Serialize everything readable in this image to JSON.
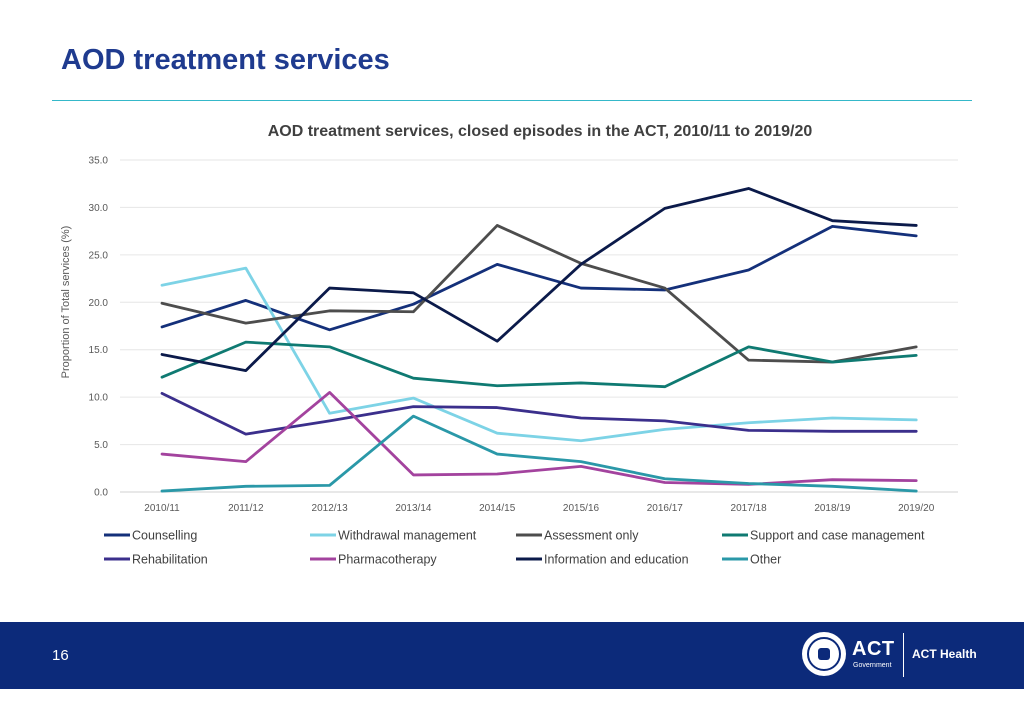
{
  "slide": {
    "title": "AOD treatment services",
    "page_number": "16"
  },
  "footer": {
    "logo_act": "ACT",
    "logo_government": "Government",
    "logo_health": "ACT Health"
  },
  "colors": {
    "title": "#1f3b8f",
    "rule": "#35b8c9",
    "footer": "#0c2a7a"
  },
  "chart_data": {
    "type": "line",
    "title": "AOD treatment services, closed episodes in the ACT, 2010/11 to 2019/20",
    "xlabel": "",
    "ylabel": "Proportion of Total services (%)",
    "ylim": [
      0,
      35
    ],
    "yticks": [
      "0.0",
      "5.0",
      "10.0",
      "15.0",
      "20.0",
      "25.0",
      "30.0",
      "35.0"
    ],
    "grid": true,
    "legend_position": "bottom",
    "categories": [
      "2010/11",
      "2011/12",
      "2012/13",
      "2013/14",
      "2014/15",
      "2015/16",
      "2016/17",
      "2017/18",
      "2018/19",
      "2019/20"
    ],
    "series": [
      {
        "name": "Counselling",
        "color": "#14307a",
        "values": [
          17.4,
          20.2,
          17.1,
          19.8,
          24.0,
          21.5,
          21.3,
          23.4,
          28.0,
          27.0
        ]
      },
      {
        "name": "Withdrawal management",
        "color": "#7dd3e6",
        "values": [
          21.8,
          23.6,
          8.3,
          9.9,
          6.2,
          5.4,
          6.6,
          7.3,
          7.8,
          7.6
        ]
      },
      {
        "name": "Assessment only",
        "color": "#4d4d4d",
        "values": [
          19.9,
          17.8,
          19.1,
          19.0,
          28.1,
          24.1,
          21.5,
          13.9,
          13.7,
          15.3
        ]
      },
      {
        "name": "Support and case management",
        "color": "#0f7a72",
        "values": [
          12.1,
          15.8,
          15.3,
          12.0,
          11.2,
          11.5,
          11.1,
          15.3,
          13.7,
          14.4
        ]
      },
      {
        "name": "Rehabilitation",
        "color": "#3b2f8c",
        "values": [
          10.4,
          6.1,
          7.5,
          9.0,
          8.9,
          7.8,
          7.5,
          6.5,
          6.4,
          6.4
        ]
      },
      {
        "name": "Pharmacotherapy",
        "color": "#a3439e",
        "values": [
          4.0,
          3.2,
          10.5,
          1.8,
          1.9,
          2.7,
          1.0,
          0.8,
          1.3,
          1.2
        ]
      },
      {
        "name": "Information and education",
        "color": "#0b1a4a",
        "values": [
          14.5,
          12.8,
          21.5,
          21.0,
          15.9,
          24.0,
          29.9,
          32.0,
          28.6,
          28.1
        ]
      },
      {
        "name": "Other",
        "color": "#2a98a8",
        "values": [
          0.1,
          0.6,
          0.7,
          8.0,
          4.0,
          3.2,
          1.4,
          0.9,
          0.6,
          0.1
        ]
      }
    ]
  }
}
